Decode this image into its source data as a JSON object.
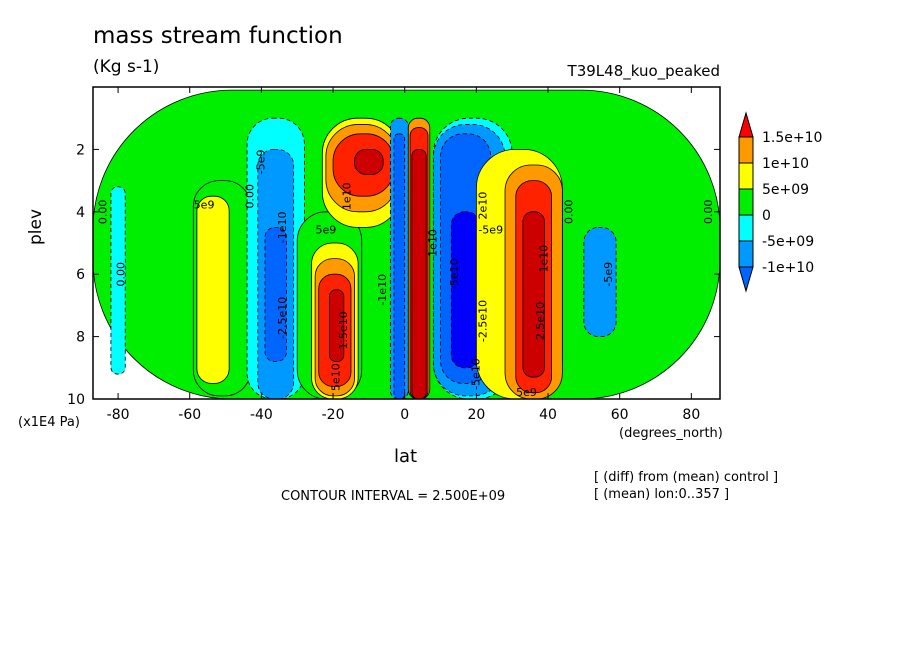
{
  "header": {
    "title": "mass stream function",
    "units": "(Kg s-1)",
    "run_name": "T39L48_kuo_peaked"
  },
  "footer": {
    "contour_interval": "CONTOUR INTERVAL = 2.500E+09",
    "note_diff": "[ (diff) from (mean) control ]",
    "note_mean": "[ (mean) lon:0..357 ]"
  },
  "chart_data": {
    "type": "heatmap",
    "xlabel": "lat",
    "xunits": "(degrees_north)",
    "ylabel": "plev",
    "yunits": "(x1E4 Pa)",
    "xlim": [
      -87,
      88
    ],
    "ylim": [
      10,
      0
    ],
    "x_ticks": [
      -80,
      -60,
      -40,
      -20,
      0,
      20,
      40,
      60,
      80
    ],
    "x_tick_labels": [
      "-80",
      "-60",
      "-40",
      "-20",
      "0",
      "20",
      "40",
      "60",
      "80"
    ],
    "y_ticks": [
      2,
      4,
      6,
      8,
      10
    ],
    "y_tick_labels": [
      "2",
      "4",
      "6",
      "8",
      "10"
    ],
    "colorbar": {
      "labels": [
        "1.5e+10",
        "1e+10",
        "5e+09",
        "0",
        "-5e+09",
        "-1e+10"
      ],
      "colors": [
        "#ff0000",
        "#ff9900",
        "#ffff00",
        "#00ee00",
        "#00ffff",
        "#0099ff",
        "#0000ff",
        "#cc0000"
      ]
    },
    "level_colors": {
      "-4": "#0000ff",
      "-3": "#0066ff",
      "-2": "#0099ff",
      "-1": "#00ffff",
      "0": "#00ee00",
      "1": "#ffff00",
      "2": "#ff9900",
      "3": "#ff2200",
      "4": "#cc0000"
    },
    "cells": [
      {
        "x0": -87,
        "x1": 88,
        "y0": 0.1,
        "y1": 10,
        "level": 0
      },
      {
        "x0": -82,
        "x1": -78,
        "y0": 3.2,
        "y1": 9.2,
        "level": -1
      },
      {
        "x0": -59,
        "x1": -43,
        "y0": 3.0,
        "y1": 9.9,
        "level": 0
      },
      {
        "x0": -58,
        "x1": -49,
        "y0": 3.5,
        "y1": 9.5,
        "level": 1
      },
      {
        "x0": -44,
        "x1": -28,
        "y0": 1.0,
        "y1": 10,
        "level": -1
      },
      {
        "x0": -41,
        "x1": -31,
        "y0": 2.0,
        "y1": 10,
        "level": -2
      },
      {
        "x0": -39,
        "x1": -33,
        "y0": 4.5,
        "y1": 8.8,
        "level": -3
      },
      {
        "x0": -30,
        "x1": -12,
        "y0": 4.0,
        "y1": 10,
        "level": 0
      },
      {
        "x0": -26,
        "x1": -13,
        "y0": 5.0,
        "y1": 10,
        "level": 1
      },
      {
        "x0": -25,
        "x1": -14,
        "y0": 5.5,
        "y1": 9.9,
        "level": 2
      },
      {
        "x0": -24,
        "x1": -15,
        "y0": 6.0,
        "y1": 9.6,
        "level": 3
      },
      {
        "x0": -21,
        "x1": -17,
        "y0": 6.5,
        "y1": 8.8,
        "level": 4
      },
      {
        "x0": -23,
        "x1": -1,
        "y0": 1.0,
        "y1": 4.5,
        "level": 1
      },
      {
        "x0": -22,
        "x1": -2,
        "y0": 1.2,
        "y1": 4.0,
        "level": 2
      },
      {
        "x0": -20,
        "x1": -3,
        "y0": 1.5,
        "y1": 3.5,
        "level": 3
      },
      {
        "x0": -14,
        "x1": -6,
        "y0": 2.0,
        "y1": 2.8,
        "level": 4
      },
      {
        "x0": -4,
        "x1": 1,
        "y0": 1.0,
        "y1": 10,
        "level": -2
      },
      {
        "x0": -3,
        "x1": 0,
        "y0": 1.5,
        "y1": 10,
        "level": -3
      },
      {
        "x0": 1,
        "x1": 7,
        "y0": 1.0,
        "y1": 10,
        "level": 2
      },
      {
        "x0": 1.5,
        "x1": 6.5,
        "y0": 1.3,
        "y1": 10,
        "level": 3
      },
      {
        "x0": 2,
        "x1": 6,
        "y0": 2.0,
        "y1": 10,
        "level": 4
      },
      {
        "x0": 8,
        "x1": 30,
        "y0": 1.0,
        "y1": 10,
        "level": -1
      },
      {
        "x0": 8,
        "x1": 28,
        "y0": 1.2,
        "y1": 9.9,
        "level": -2
      },
      {
        "x0": 10,
        "x1": 24,
        "y0": 1.5,
        "y1": 9.5,
        "level": -3
      },
      {
        "x0": 13,
        "x1": 21,
        "y0": 4.0,
        "y1": 9.0,
        "level": -4
      },
      {
        "x0": 20,
        "x1": 44,
        "y0": 2.0,
        "y1": 10,
        "level": 1
      },
      {
        "x0": 28,
        "x1": 44,
        "y0": 2.5,
        "y1": 10,
        "level": 2
      },
      {
        "x0": 31,
        "x1": 41,
        "y0": 3.0,
        "y1": 9.8,
        "level": 3
      },
      {
        "x0": 33,
        "x1": 39,
        "y0": 4.0,
        "y1": 9.3,
        "level": 4
      },
      {
        "x0": 50,
        "x1": 59,
        "y0": 4.5,
        "y1": 8.0,
        "level": -2
      }
    ],
    "contour_labels": [
      {
        "x": -84,
        "y": 4.0,
        "text": "0.00",
        "rotate": -90
      },
      {
        "x": -79,
        "y": 6.0,
        "text": "0.00",
        "rotate": -90
      },
      {
        "x": -56,
        "y": 3.8,
        "text": "5e9",
        "rotate": 0
      },
      {
        "x": -43,
        "y": 3.5,
        "text": "0.00",
        "rotate": -90
      },
      {
        "x": -40,
        "y": 2.4,
        "text": "-5e9",
        "rotate": -90
      },
      {
        "x": -34,
        "y": 4.5,
        "text": "-1e10",
        "rotate": -90
      },
      {
        "x": -34,
        "y": 7.4,
        "text": "-2.5e10",
        "rotate": -90
      },
      {
        "x": -22,
        "y": 4.6,
        "text": "5e9",
        "rotate": 0
      },
      {
        "x": -16,
        "y": 3.5,
        "text": "1e10",
        "rotate": -90
      },
      {
        "x": -17,
        "y": 7.8,
        "text": "1.5e10",
        "rotate": -90
      },
      {
        "x": -19,
        "y": 9.3,
        "text": "5e10",
        "rotate": -90
      },
      {
        "x": -6,
        "y": 6.5,
        "text": "-1e10",
        "rotate": -90
      },
      {
        "x": 8,
        "y": 5.0,
        "text": "1e10",
        "rotate": -90
      },
      {
        "x": 14,
        "y": 6.0,
        "text": "-5e10",
        "rotate": -90
      },
      {
        "x": 22,
        "y": 7.5,
        "text": "-2.5e10",
        "rotate": -90
      },
      {
        "x": 20,
        "y": 9.2,
        "text": "-5e10",
        "rotate": -90
      },
      {
        "x": 22,
        "y": 3.8,
        "text": "2e10",
        "rotate": -90
      },
      {
        "x": 24,
        "y": 4.6,
        "text": "-5e9",
        "rotate": 0
      },
      {
        "x": 38,
        "y": 7.5,
        "text": "2.5e10",
        "rotate": -90
      },
      {
        "x": 39,
        "y": 5.5,
        "text": "1e10",
        "rotate": -90
      },
      {
        "x": 46,
        "y": 4.0,
        "text": "0.00",
        "rotate": -90
      },
      {
        "x": 57,
        "y": 6.0,
        "text": "-5e9",
        "rotate": -90
      },
      {
        "x": 85,
        "y": 4.0,
        "text": "0.00",
        "rotate": -90
      },
      {
        "x": 34,
        "y": 9.8,
        "text": "5e9",
        "rotate": 0
      }
    ]
  }
}
